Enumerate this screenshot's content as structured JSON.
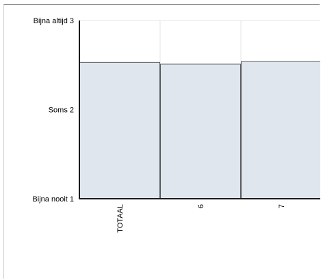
{
  "chart_data": {
    "type": "bar",
    "categories": [
      "TOTAAL",
      "6",
      "7"
    ],
    "values": [
      2.53,
      2.51,
      2.54
    ],
    "ylim": [
      1,
      3
    ],
    "yticks": [
      {
        "value": 1,
        "label": "Bijna nooit 1"
      },
      {
        "value": 2,
        "label": "Soms 2"
      },
      {
        "value": 3,
        "label": "Bijna altijd 3"
      }
    ],
    "grid": true,
    "legend": "none",
    "colors": {
      "bar_fill": "#dfe6ed",
      "bar_stroke": "#5a5a5a",
      "grid": "#e4e4e4",
      "axis": "#1a1a1a"
    }
  }
}
